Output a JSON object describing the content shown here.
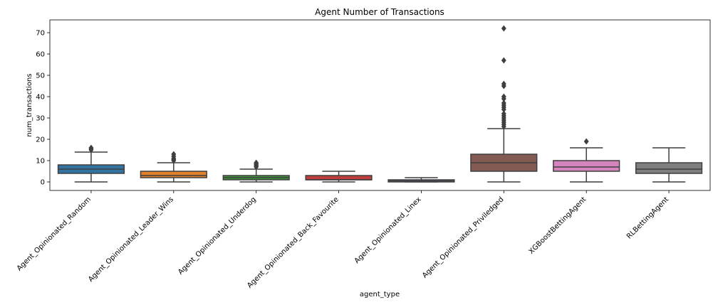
{
  "chart_data": {
    "type": "box",
    "title": "Agent Number of Transactions",
    "xlabel": "agent_type",
    "ylabel": "num_transactions",
    "ylim": [
      -4,
      76
    ],
    "yticks": [
      0,
      10,
      20,
      30,
      40,
      50,
      60,
      70
    ],
    "grid": false,
    "legend": "none",
    "categories": [
      "Agent_Opinionated_Random",
      "Agent_Opinionated_Leader_Wins",
      "Agent_Opinionated_Underdog",
      "Agent_Opinionated_Back_Favourite",
      "Agent_Opinionated_Linex",
      "Agent_Opinionated_Priviledged",
      "XGBoostBettingAgent",
      "RLBettingAgent"
    ],
    "boxes": [
      {
        "min": 0,
        "q1": 4,
        "median": 6,
        "q3": 8,
        "max": 14,
        "outliers": [
          15,
          15.5,
          16
        ],
        "color": "#3274a1"
      },
      {
        "min": 0,
        "q1": 2,
        "median": 3,
        "q3": 5,
        "max": 9,
        "outliers": [
          10,
          10.5,
          11,
          12,
          13
        ],
        "color": "#e1812c"
      },
      {
        "min": 0,
        "q1": 1,
        "median": 2,
        "q3": 3,
        "max": 6,
        "outliers": [
          7,
          7.5,
          8,
          8.5,
          9
        ],
        "color": "#3a923a"
      },
      {
        "min": 0,
        "q1": 1,
        "median": 1,
        "q3": 3,
        "max": 5,
        "outliers": [],
        "color": "#c03d3e"
      },
      {
        "min": 0,
        "q1": 0,
        "median": 0.5,
        "q3": 1,
        "max": 2,
        "outliers": [],
        "color": "#9372b2"
      },
      {
        "min": 0,
        "q1": 5,
        "median": 9,
        "q3": 13,
        "max": 25,
        "outliers": [
          26,
          27,
          28,
          29,
          30,
          31,
          32,
          34,
          35,
          36,
          37,
          39,
          40,
          45,
          46,
          57,
          72
        ],
        "color": "#845b53"
      },
      {
        "min": 0,
        "q1": 5,
        "median": 7,
        "q3": 10,
        "max": 16,
        "outliers": [
          19
        ],
        "color": "#d684bd"
      },
      {
        "min": 0,
        "q1": 4,
        "median": 6,
        "q3": 9,
        "max": 16,
        "outliers": [],
        "color": "#7f7f7f"
      }
    ]
  }
}
